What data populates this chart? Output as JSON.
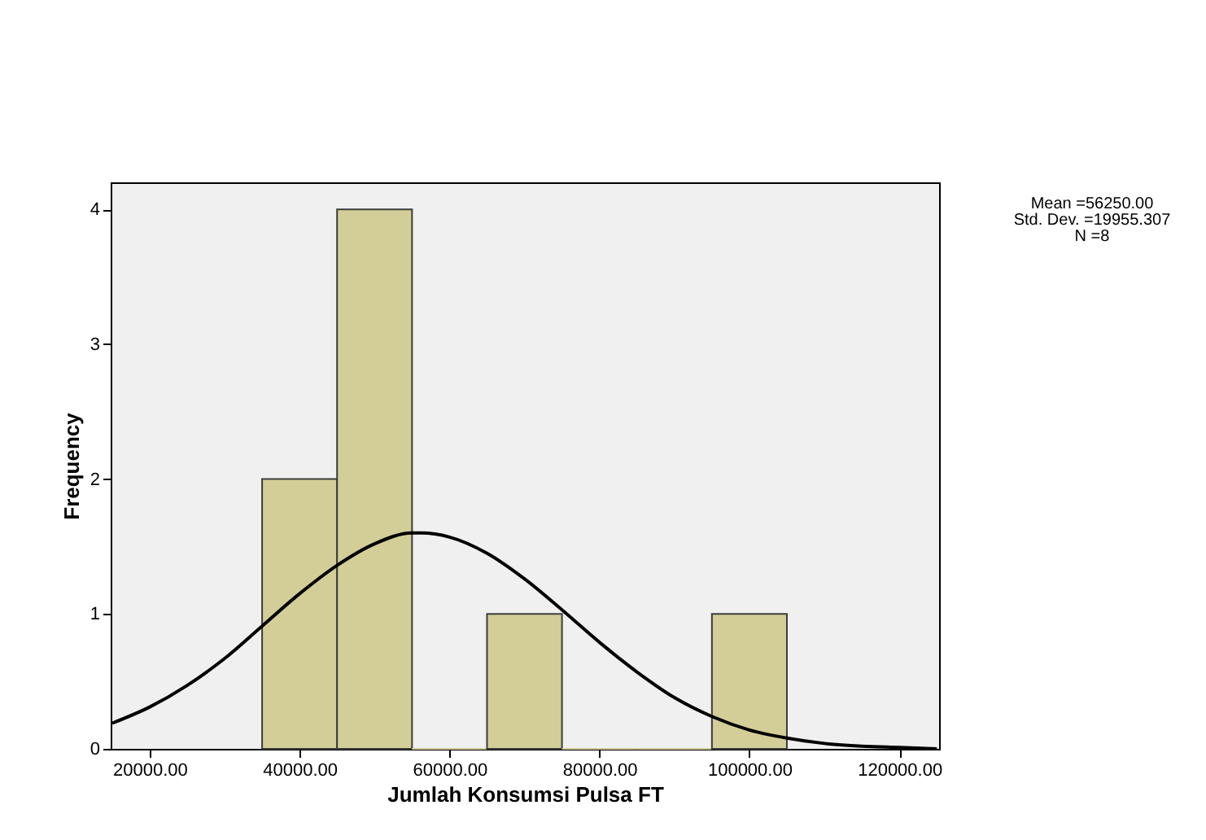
{
  "chart_data": {
    "type": "histogram",
    "xlabel": "Jumlah Konsumsi Pulsa FT",
    "ylabel": "Frequency",
    "bins": [
      35000,
      45000,
      55000,
      65000,
      75000,
      85000,
      95000,
      105000
    ],
    "values": [
      2,
      4,
      0,
      1,
      0,
      0,
      1
    ],
    "color": "#d3ce97",
    "series": [
      {
        "type": "line",
        "color": "#000000",
        "x": [
          15000,
          20000,
          25000,
          30000,
          35000,
          40000,
          45000,
          50000,
          55000,
          56250,
          60000,
          65000,
          70000,
          75000,
          80000,
          85000,
          90000,
          95000,
          100000,
          105000,
          110000,
          115000,
          120000,
          125000
        ],
        "values": [
          0.19,
          0.31,
          0.47,
          0.67,
          0.91,
          1.15,
          1.36,
          1.52,
          1.6,
          1.6,
          1.57,
          1.45,
          1.26,
          1.03,
          0.79,
          0.57,
          0.38,
          0.24,
          0.14,
          0.08,
          0.04,
          0.02,
          0.01,
          0.0
        ]
      }
    ],
    "xlim": [
      14800,
      125300
    ],
    "xticks": [
      {
        "value": 20000,
        "label": "20000.00"
      },
      {
        "value": 40000,
        "label": "40000.00"
      },
      {
        "value": 60000,
        "label": "60000.00"
      },
      {
        "value": 80000,
        "label": "80000.00"
      },
      {
        "value": 100000,
        "label": "100000.00"
      },
      {
        "value": 120000,
        "label": "120000.00"
      }
    ],
    "ylim": [
      0,
      4.2
    ],
    "yticks": [
      0,
      1,
      2,
      3,
      4
    ],
    "grid": false,
    "annotations": [
      "Mean =56250.00",
      "Std. Dev. =19955.307",
      "N =8"
    ]
  }
}
